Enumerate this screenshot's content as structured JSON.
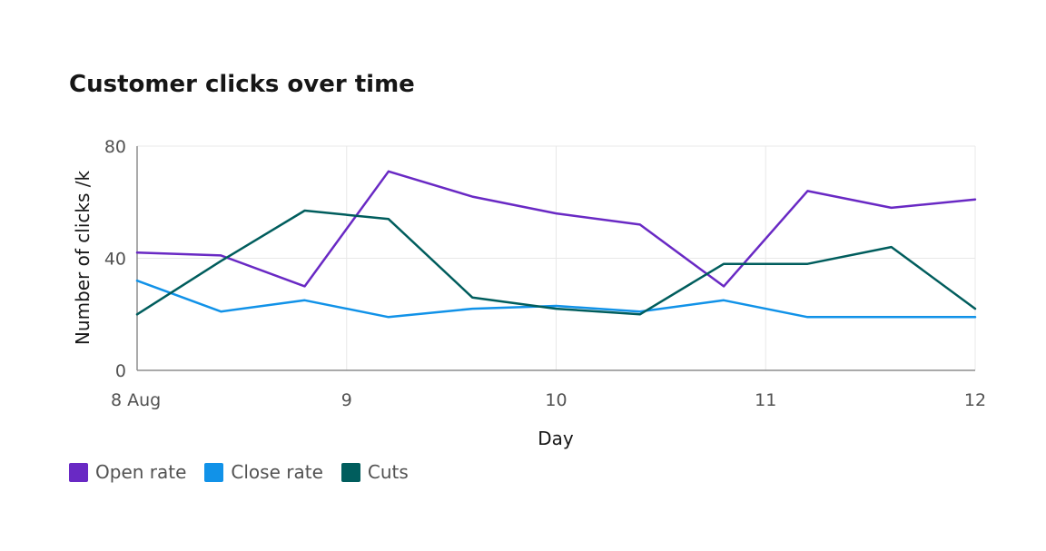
{
  "chart_data": {
    "type": "line",
    "title": "Customer clicks over time",
    "xlabel": "Day",
    "ylabel": "Number of clicks /k",
    "ylim": [
      0,
      80
    ],
    "yticks": [
      0,
      40,
      80
    ],
    "ytick_labels": [
      "0",
      "40",
      "80"
    ],
    "xlim": [
      8,
      12
    ],
    "xticks": [
      8,
      9,
      10,
      11,
      12
    ],
    "xtick_labels": [
      "8 Aug",
      "9",
      "10",
      "11",
      "12"
    ],
    "grid": true,
    "legend_position": "bottom-left",
    "x": [
      8,
      8.4,
      8.8,
      9.2,
      9.6,
      10,
      10.4,
      10.8,
      11.2,
      11.6,
      12
    ],
    "series": [
      {
        "name": "Open rate",
        "color": "#6929c4",
        "values": [
          42,
          41,
          30,
          71,
          62,
          56,
          52,
          30,
          64,
          58,
          61
        ]
      },
      {
        "name": "Close rate",
        "color": "#1192e8",
        "values": [
          32,
          21,
          25,
          19,
          22,
          23,
          21,
          25,
          19,
          19,
          19
        ]
      },
      {
        "name": "Cuts",
        "color": "#005d5d",
        "values": [
          20,
          39,
          57,
          54,
          26,
          22,
          20,
          38,
          38,
          44,
          22
        ]
      }
    ]
  }
}
